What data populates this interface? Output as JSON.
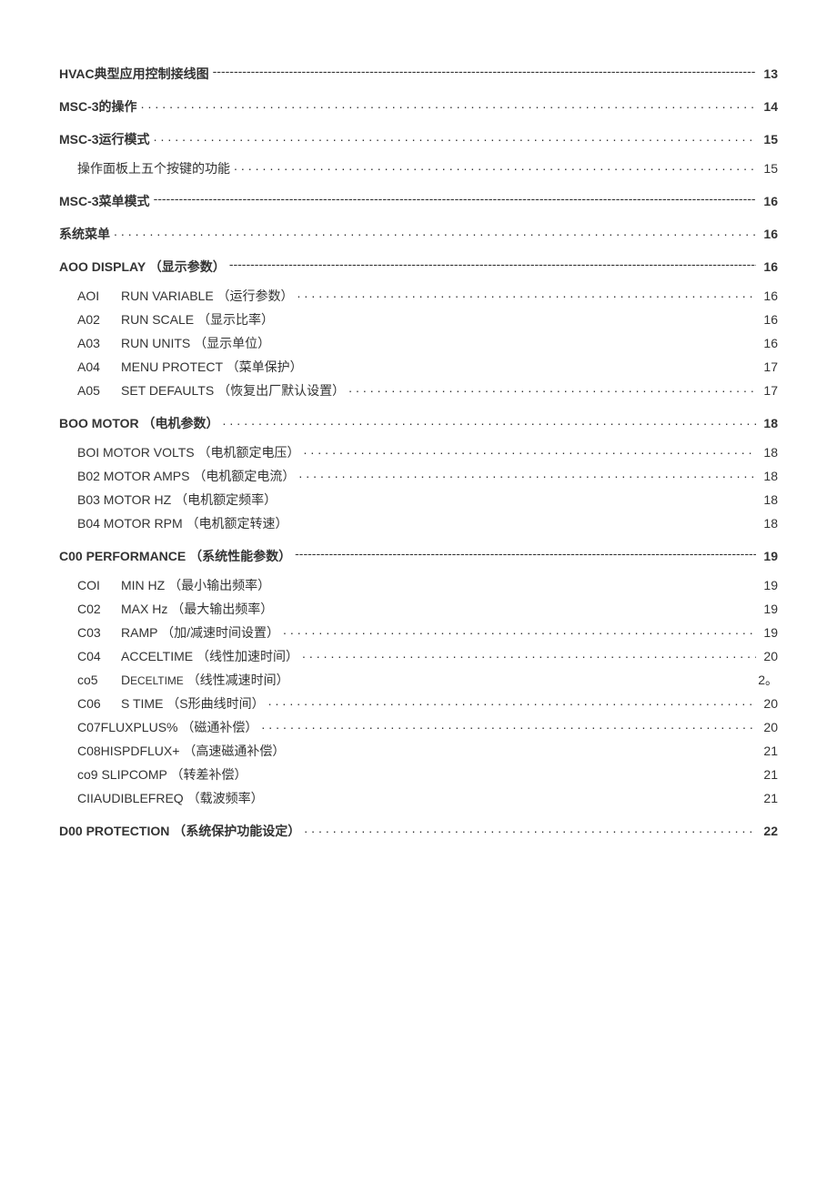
{
  "toc": [
    {
      "type": "main",
      "label": "HVAC典型应用控制接线图",
      "leader": "dash",
      "page": "13"
    },
    {
      "type": "main",
      "label": "MSC-3的操作",
      "leader": "dot",
      "page": "14"
    },
    {
      "type": "main",
      "label": "MSC-3运行模式",
      "leader": "dot",
      "page": "15"
    },
    {
      "type": "sub",
      "label": "操作面板上五个按键的功能",
      "leader": "dot",
      "page": "15"
    },
    {
      "type": "main",
      "label": "MSC-3菜单模式",
      "leader": "dash",
      "page": "16"
    },
    {
      "type": "main",
      "label": "系统菜单",
      "leader": "dot",
      "page": "16"
    },
    {
      "type": "main",
      "label": "AOO DISPLAY （显示参数）",
      "leader": "dash",
      "page": "16"
    },
    {
      "type": "subcode",
      "code": "AOI",
      "label": "RUN VARIABLE （运行参数）",
      "leader": "dot",
      "page": "16"
    },
    {
      "type": "subcode",
      "code": "A02",
      "label": "RUN SCALE （显示比率）",
      "leader": "none",
      "page": "16"
    },
    {
      "type": "subcode",
      "code": "A03",
      "label": "RUN UNITS （显示单位）",
      "leader": "none",
      "page": "16"
    },
    {
      "type": "subcode",
      "code": "A04",
      "label": "MENU PROTECT （菜单保护）",
      "leader": "none",
      "page": "17"
    },
    {
      "type": "subcode",
      "code": "A05",
      "label": "SET DEFAULTS （恢复出厂默认设置）",
      "leader": "dot",
      "page": "17"
    },
    {
      "type": "main",
      "label": "BOO MOTOR （电机参数）",
      "leader": "dot",
      "page": "18"
    },
    {
      "type": "sub",
      "label": "BOI MOTOR VOLTS （电机额定电压）",
      "leader": "dot",
      "page": "18"
    },
    {
      "type": "sub",
      "label": "B02 MOTOR AMPS （电机额定电流）",
      "leader": "dot",
      "page": "18"
    },
    {
      "type": "sub",
      "label": "B03 MOTOR HZ （电机额定频率）",
      "leader": "none",
      "page": "18"
    },
    {
      "type": "sub",
      "label": "B04 MOTOR RPM （电机额定转速）",
      "leader": "none",
      "page": "18"
    },
    {
      "type": "main",
      "label": "C00 PERFORMANCE （系统性能参数）",
      "leader": "dash",
      "page": "19"
    },
    {
      "type": "subcode",
      "code": "COI",
      "label": "MIN HZ （最小输出频率）",
      "leader": "none",
      "page": "19"
    },
    {
      "type": "subcode",
      "code": "C02",
      "label": "MAX Hz （最大输出频率）",
      "leader": "none",
      "page": "19"
    },
    {
      "type": "subcode",
      "code": "C03",
      "label": "RAMP （加/减速时间设置）",
      "leader": "dot",
      "page": "19"
    },
    {
      "type": "subcode",
      "code": "C04",
      "label": "ACCELTIME （线性加速时间）",
      "leader": "dot",
      "page": "20"
    },
    {
      "type": "subcode",
      "code": "co5",
      "label": "D<small>ECELTIME</small> （线性减速时间）",
      "leader": "none",
      "page": "2。"
    },
    {
      "type": "subcode",
      "code": "C06",
      "label": "S TIME （S形曲线时间）",
      "leader": "dot",
      "page": "20"
    },
    {
      "type": "sub",
      "label": "C07FLUXPLUS% （磁通补偿）",
      "leader": "dot",
      "page": "20"
    },
    {
      "type": "sub",
      "label": "C08HISPDFLUX+ （高速磁通补偿）",
      "leader": "none",
      "page": "21"
    },
    {
      "type": "sub",
      "label": "co9 SLIPCOMP （转差补偿）",
      "leader": "none",
      "page": "21"
    },
    {
      "type": "sub",
      "label": "CIIAUDIBLEFREQ （载波频率）",
      "leader": "none",
      "page": "21"
    },
    {
      "type": "main",
      "label": "D00 PROTECTION （系统保护功能设定）",
      "leader": "dot",
      "page": "22"
    }
  ]
}
